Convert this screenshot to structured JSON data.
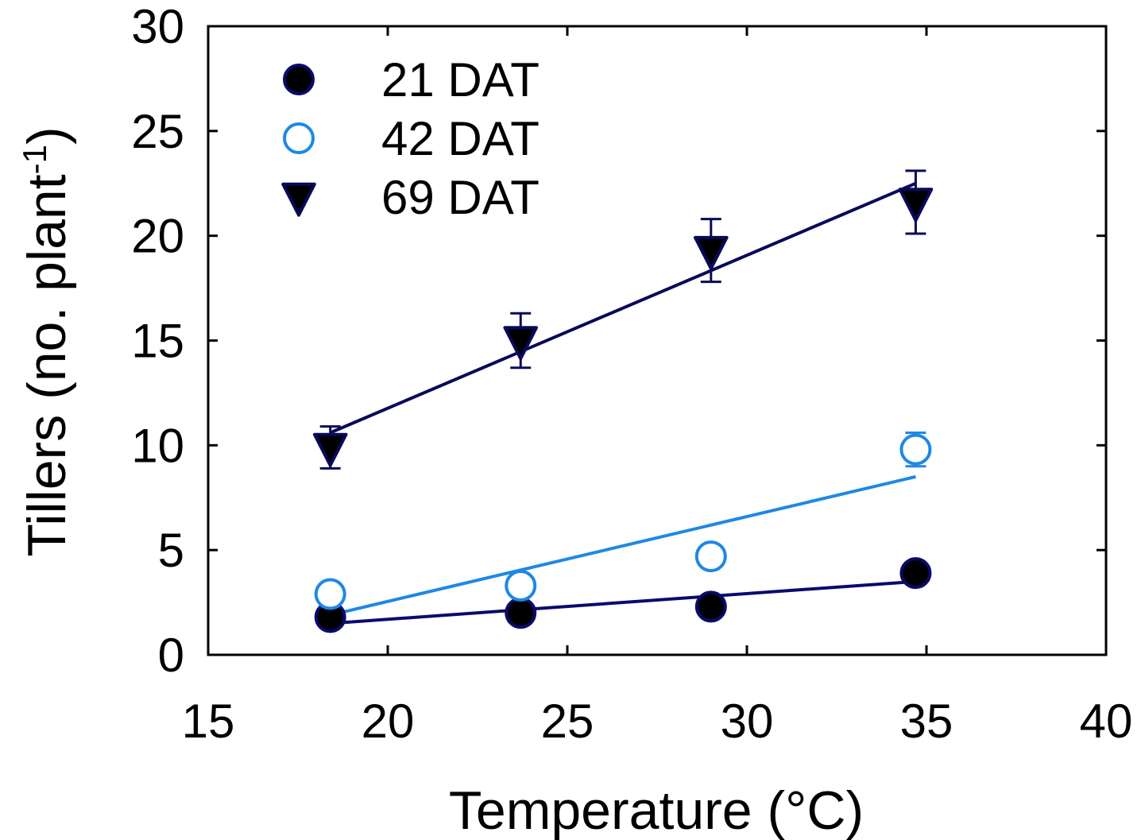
{
  "chart_data": {
    "type": "scatter",
    "title": "",
    "xlabel": "Temperature (°C)",
    "ylabel": "Tillers (no. plant",
    "ylabel_superscript": "-1",
    "ylabel_suffix": ")",
    "xlim": [
      15,
      40
    ],
    "ylim": [
      0,
      30
    ],
    "xticks": [
      15,
      20,
      25,
      30,
      35,
      40
    ],
    "yticks": [
      0,
      5,
      10,
      15,
      20,
      25,
      30
    ],
    "grid": false,
    "legend_position": "top-left",
    "series": [
      {
        "name": "21 DAT",
        "marker": "circle-filled",
        "color": "#000000",
        "edge_color": "#0a0a6e",
        "line_color": "#0a0a6e",
        "points": [
          {
            "x": 18.4,
            "y": 1.8
          },
          {
            "x": 23.7,
            "y": 2.0
          },
          {
            "x": 29.0,
            "y": 2.3
          },
          {
            "x": 34.7,
            "y": 3.9
          }
        ],
        "fit": [
          [
            18.4,
            1.5
          ],
          [
            34.7,
            3.5
          ]
        ]
      },
      {
        "name": "42 DAT",
        "marker": "circle-open",
        "color": "#ffffff",
        "edge_color": "#1e88e5",
        "line_color": "#1e88e5",
        "points": [
          {
            "x": 18.4,
            "y": 2.9
          },
          {
            "x": 23.7,
            "y": 3.3
          },
          {
            "x": 29.0,
            "y": 4.7
          },
          {
            "x": 34.7,
            "y": 9.8,
            "err": 0.8
          }
        ],
        "fit": [
          [
            18.4,
            1.9
          ],
          [
            34.7,
            8.5
          ]
        ]
      },
      {
        "name": "69 DAT",
        "marker": "triangle-down",
        "color": "#000000",
        "edge_color": "#0a0a5a",
        "line_color": "#0a0a5a",
        "points": [
          {
            "x": 18.4,
            "y": 9.9,
            "err": 1.0
          },
          {
            "x": 23.7,
            "y": 15.0,
            "err": 1.3
          },
          {
            "x": 29.0,
            "y": 19.3,
            "err": 1.5
          },
          {
            "x": 34.7,
            "y": 21.6,
            "err": 1.5
          }
        ],
        "fit": [
          [
            18.4,
            10.6
          ],
          [
            34.7,
            22.5
          ]
        ]
      }
    ]
  }
}
